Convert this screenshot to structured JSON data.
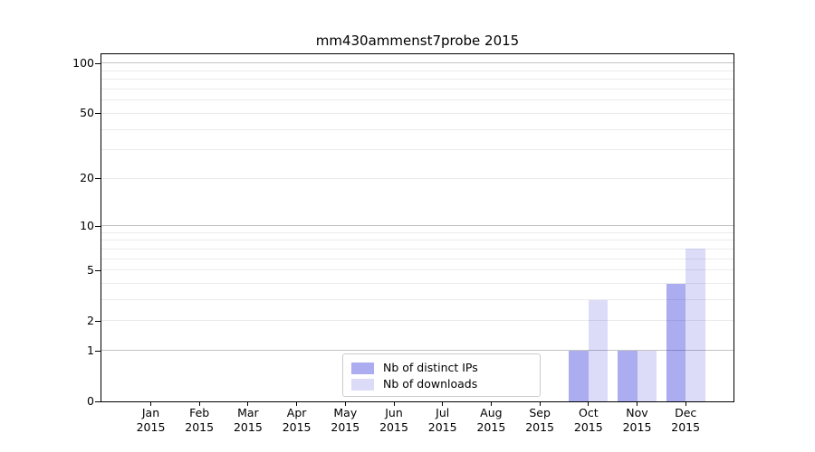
{
  "chart_data": {
    "type": "bar",
    "title": "mm430ammenst7probe 2015",
    "categories": [
      "Jan",
      "Feb",
      "Mar",
      "Apr",
      "May",
      "Jun",
      "Jul",
      "Aug",
      "Sep",
      "Oct",
      "Nov",
      "Dec"
    ],
    "category_year": "2015",
    "series": [
      {
        "name": "Nb of distinct IPs",
        "color": "rgba(18,18,214,0.35)",
        "values": [
          0,
          0,
          0,
          0,
          0,
          0,
          0,
          0,
          0,
          1,
          1,
          4
        ]
      },
      {
        "name": "Nb of downloads",
        "color": "rgba(18,18,214,0.15)",
        "values": [
          0,
          0,
          0,
          0,
          0,
          0,
          0,
          0,
          0,
          3,
          1,
          7
        ]
      }
    ],
    "y_ticks": [
      0,
      1,
      2,
      5,
      10,
      20,
      50,
      100
    ],
    "y_major_gridlines": [
      1,
      10,
      100
    ],
    "y_minor_gridlines": [
      2,
      3,
      4,
      5,
      6,
      7,
      8,
      9,
      20,
      30,
      40,
      50,
      60,
      70,
      80,
      90
    ],
    "scale": "log10(value+1)",
    "ylim": [
      0,
      113
    ],
    "xlabel": "",
    "ylabel": "",
    "grid": true,
    "legend_position": "lower center"
  },
  "colors": {
    "major_grid": "#c3c3c3",
    "minor_grid": "#ebebeb",
    "axis": "#000000",
    "legend_border": "#cccccc",
    "background": "#ffffff"
  }
}
